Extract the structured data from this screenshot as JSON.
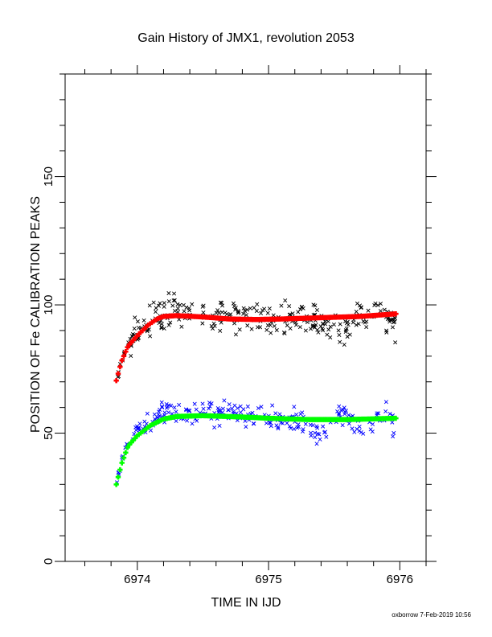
{
  "chart_data": {
    "type": "scatter",
    "title": "Gain History of JMX1, revolution 2053",
    "xlabel": "TIME IN IJD",
    "ylabel": "POSITION OF Fe CALIBRATION PEAKS",
    "xlim": [
      6973.45,
      6976.2
    ],
    "ylim": [
      0,
      190
    ],
    "x_ticks": [
      6974,
      6975,
      6976
    ],
    "y_ticks": [
      0,
      50,
      100,
      150
    ],
    "x_minor_step": 0.2,
    "y_minor_step": 10,
    "grid": false,
    "legend": "none",
    "footer": "oxborrow  7-Feb-2019 10:56",
    "series": [
      {
        "kind": "scatter",
        "color": "#000000",
        "marker": "x",
        "x_start": 6973.84,
        "x_end": 6975.97,
        "count": 300,
        "seed": 17,
        "base": [
          [
            6973.84,
            70.5
          ],
          [
            6973.86,
            74
          ],
          [
            6973.9,
            82
          ],
          [
            6973.95,
            86.5
          ],
          [
            6974.0,
            89.5
          ],
          [
            6974.05,
            91.5
          ],
          [
            6974.1,
            93.5
          ],
          [
            6974.2,
            97
          ],
          [
            6974.3,
            98
          ],
          [
            6974.45,
            95.5
          ],
          [
            6974.6,
            95.5
          ],
          [
            6974.8,
            95
          ],
          [
            6975.0,
            94
          ],
          [
            6975.2,
            95
          ],
          [
            6975.3,
            95.5
          ],
          [
            6975.45,
            91.5
          ],
          [
            6975.55,
            89.5
          ],
          [
            6975.6,
            92
          ],
          [
            6975.75,
            96
          ],
          [
            6975.85,
            99.5
          ],
          [
            6975.9,
            96
          ],
          [
            6975.97,
            90.5
          ]
        ],
        "spread": 3.0
      },
      {
        "kind": "fit",
        "color": "#ff0000",
        "marker": "plus",
        "x_start": 6973.84,
        "x_end": 6975.97,
        "count": 150,
        "curve": [
          [
            6973.84,
            70.5
          ],
          [
            6973.88,
            78
          ],
          [
            6973.93,
            84
          ],
          [
            6974.0,
            88
          ],
          [
            6974.08,
            92
          ],
          [
            6974.15,
            94.5
          ],
          [
            6974.2,
            95.5
          ],
          [
            6974.3,
            95.8
          ],
          [
            6974.5,
            95.3
          ],
          [
            6974.7,
            94.5
          ],
          [
            6974.9,
            94.3
          ],
          [
            6975.1,
            94.5
          ],
          [
            6975.4,
            95
          ],
          [
            6975.7,
            95.5
          ],
          [
            6975.97,
            96.5
          ]
        ]
      },
      {
        "kind": "scatter",
        "color": "#0000ff",
        "marker": "x",
        "x_start": 6973.84,
        "x_end": 6975.97,
        "count": 260,
        "seed": 91,
        "base": [
          [
            6973.84,
            30
          ],
          [
            6973.87,
            37
          ],
          [
            6973.9,
            44
          ],
          [
            6973.95,
            47.5
          ],
          [
            6974.0,
            51
          ],
          [
            6974.1,
            54
          ],
          [
            6974.2,
            58.5
          ],
          [
            6974.3,
            58
          ],
          [
            6974.45,
            57
          ],
          [
            6974.6,
            58
          ],
          [
            6974.8,
            57.5
          ],
          [
            6975.0,
            56
          ],
          [
            6975.2,
            55.5
          ],
          [
            6975.3,
            52
          ],
          [
            6975.35,
            48.5
          ],
          [
            6975.45,
            50.5
          ],
          [
            6975.5,
            55
          ],
          [
            6975.55,
            59
          ],
          [
            6975.65,
            54
          ],
          [
            6975.75,
            51
          ],
          [
            6975.85,
            58
          ],
          [
            6975.92,
            56
          ],
          [
            6975.97,
            50.5
          ]
        ],
        "spread": 2.2
      },
      {
        "kind": "fit",
        "color": "#00ff00",
        "marker": "plus",
        "x_start": 6973.84,
        "x_end": 6975.97,
        "count": 150,
        "curve": [
          [
            6973.84,
            30
          ],
          [
            6973.88,
            38
          ],
          [
            6973.93,
            45
          ],
          [
            6974.0,
            49
          ],
          [
            6974.1,
            53
          ],
          [
            6974.2,
            55.5
          ],
          [
            6974.3,
            56.5
          ],
          [
            6974.5,
            56.8
          ],
          [
            6974.8,
            56.3
          ],
          [
            6975.0,
            55.8
          ],
          [
            6975.3,
            55.3
          ],
          [
            6975.6,
            55.3
          ],
          [
            6975.97,
            55.8
          ]
        ]
      }
    ]
  }
}
